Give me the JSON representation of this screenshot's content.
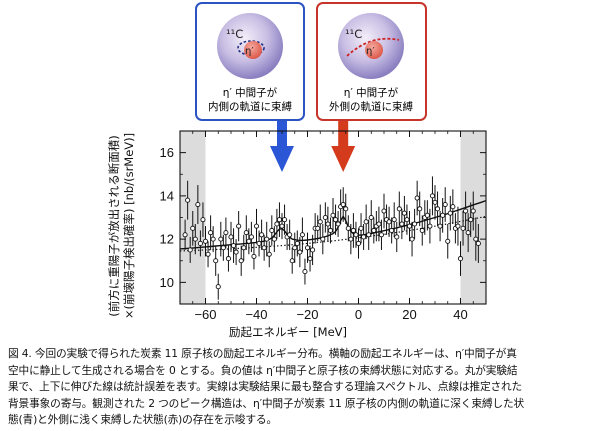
{
  "boxes": {
    "inner": {
      "nucleus_label": "¹¹C",
      "meson_label": "η′",
      "line1": "η′ 中間子が",
      "line2": "内側の軌道に束縛",
      "color": "#2b53c2"
    },
    "outer": {
      "nucleus_label": "¹¹C",
      "meson_label": "η′",
      "line1": "η′ 中間子が",
      "line2": "外側の軌道に束縛",
      "color": "#c7352a"
    }
  },
  "chart_data": {
    "type": "scatter",
    "xlabel": "励起エネルギー [MeV]",
    "ylabel_line1": "(前方に重陽子が放出される断面積)",
    "ylabel_line2": "×(崩壊陽子検出確率) [nb/(srMeV)]",
    "xlim": [
      -70,
      50
    ],
    "ylim": [
      9,
      17
    ],
    "x_ticks": [
      -60,
      -40,
      -20,
      0,
      20,
      40
    ],
    "x_tick_labels": [
      "−60",
      "−40",
      "−20",
      "0",
      "20",
      "40"
    ],
    "y_ticks": [
      10,
      12,
      14,
      16
    ],
    "y_tick_labels": [
      "10",
      "12",
      "14",
      "16"
    ],
    "shaded_regions": [
      [
        -70,
        -60
      ],
      [
        40,
        50
      ]
    ],
    "arrows": [
      {
        "x": -30,
        "color": "#2b56d6"
      },
      {
        "x": -6,
        "color": "#d43a1c"
      }
    ],
    "series": [
      {
        "kind": "data_points",
        "points": [
          [
            -68,
            12.2,
            0.7
          ],
          [
            -67,
            13.8,
            0.9
          ],
          [
            -66,
            11.5,
            0.6
          ],
          [
            -65,
            12.5,
            0.8
          ],
          [
            -64,
            12.0,
            0.7
          ],
          [
            -63,
            13.6,
            0.9
          ],
          [
            -62,
            11.8,
            0.6
          ],
          [
            -61,
            12.9,
            0.8
          ],
          [
            -60,
            11.9,
            0.7
          ],
          [
            -59,
            11.3,
            0.6
          ],
          [
            -58,
            12.3,
            0.8
          ],
          [
            -57,
            12.0,
            0.6
          ],
          [
            -56,
            11.0,
            0.7
          ],
          [
            -55,
            9.8,
            0.6
          ],
          [
            -54,
            12.0,
            0.8
          ],
          [
            -53,
            11.6,
            0.6
          ],
          [
            -52,
            12.3,
            0.7
          ],
          [
            -51,
            11.1,
            0.6
          ],
          [
            -50,
            12.1,
            0.7
          ],
          [
            -49,
            11.7,
            0.8
          ],
          [
            -48,
            11.4,
            0.6
          ],
          [
            -47,
            12.6,
            0.7
          ],
          [
            -46,
            11.0,
            0.7
          ],
          [
            -45,
            11.6,
            0.6
          ],
          [
            -44,
            12.3,
            0.8
          ],
          [
            -43,
            11.9,
            0.6
          ],
          [
            -42,
            12.1,
            0.7
          ],
          [
            -41,
            11.2,
            0.6
          ],
          [
            -40,
            12.6,
            0.8
          ],
          [
            -39,
            11.8,
            0.6
          ],
          [
            -38,
            12.2,
            0.7
          ],
          [
            -37,
            11.6,
            0.6
          ],
          [
            -36,
            12.0,
            0.8
          ],
          [
            -35,
            11.3,
            0.6
          ],
          [
            -34,
            12.4,
            0.7
          ],
          [
            -33,
            12.0,
            0.6
          ],
          [
            -32,
            12.7,
            0.7
          ],
          [
            -31,
            12.9,
            0.8
          ],
          [
            -30,
            12.6,
            0.6
          ],
          [
            -29,
            12.9,
            0.7
          ],
          [
            -28,
            12.1,
            0.6
          ],
          [
            -27,
            12.2,
            0.7
          ],
          [
            -26,
            11.0,
            0.6
          ],
          [
            -25,
            11.6,
            0.7
          ],
          [
            -24,
            11.8,
            0.6
          ],
          [
            -23,
            11.4,
            0.7
          ],
          [
            -22,
            12.2,
            0.8
          ],
          [
            -21,
            10.5,
            0.6
          ],
          [
            -20,
            11.6,
            0.7
          ],
          [
            -19,
            11.1,
            0.6
          ],
          [
            -18,
            11.5,
            0.7
          ],
          [
            -17,
            12.5,
            0.7
          ],
          [
            -16,
            12.5,
            0.6
          ],
          [
            -15,
            12.8,
            0.8
          ],
          [
            -14,
            12.0,
            0.7
          ],
          [
            -13,
            13.0,
            0.7
          ],
          [
            -12,
            12.7,
            0.8
          ],
          [
            -11,
            12.4,
            0.6
          ],
          [
            -10,
            13.1,
            0.8
          ],
          [
            -9,
            12.9,
            0.7
          ],
          [
            -8,
            12.7,
            0.6
          ],
          [
            -7,
            13.5,
            0.8
          ],
          [
            -6,
            13.6,
            0.8
          ],
          [
            -5,
            13.4,
            0.7
          ],
          [
            -4,
            12.5,
            0.6
          ],
          [
            -3,
            12.0,
            0.7
          ],
          [
            -2,
            12.4,
            0.8
          ],
          [
            -1,
            12.2,
            0.6
          ],
          [
            0,
            11.8,
            0.7
          ],
          [
            1,
            12.5,
            0.7
          ],
          [
            2,
            12.1,
            0.6
          ],
          [
            3,
            12.8,
            0.8
          ],
          [
            4,
            12.2,
            0.7
          ],
          [
            5,
            13.0,
            0.8
          ],
          [
            6,
            12.4,
            0.6
          ],
          [
            7,
            12.6,
            0.7
          ],
          [
            8,
            12.7,
            0.8
          ],
          [
            9,
            12.2,
            0.7
          ],
          [
            10,
            13.3,
            0.8
          ],
          [
            11,
            12.9,
            0.7
          ],
          [
            12,
            12.8,
            0.7
          ],
          [
            13,
            12.4,
            0.6
          ],
          [
            14,
            12.9,
            0.8
          ],
          [
            15,
            12.1,
            0.7
          ],
          [
            16,
            13.4,
            0.8
          ],
          [
            17,
            12.7,
            0.7
          ],
          [
            18,
            13.2,
            0.8
          ],
          [
            19,
            12.9,
            0.7
          ],
          [
            20,
            12.6,
            0.7
          ],
          [
            21,
            12.0,
            0.8
          ],
          [
            22,
            12.7,
            0.7
          ],
          [
            23,
            13.9,
            0.8
          ],
          [
            24,
            13.4,
            0.8
          ],
          [
            25,
            12.4,
            0.7
          ],
          [
            26,
            13.0,
            0.8
          ],
          [
            27,
            13.1,
            0.7
          ],
          [
            28,
            12.6,
            0.8
          ],
          [
            29,
            14.0,
            0.9
          ],
          [
            30,
            13.7,
            0.8
          ],
          [
            31,
            13.4,
            0.8
          ],
          [
            32,
            12.6,
            0.7
          ],
          [
            33,
            13.1,
            0.8
          ],
          [
            34,
            13.6,
            0.8
          ],
          [
            35,
            11.9,
            0.8
          ],
          [
            36,
            13.2,
            0.8
          ],
          [
            37,
            13.5,
            0.8
          ],
          [
            38,
            12.5,
            0.7
          ],
          [
            39,
            12.6,
            0.9
          ],
          [
            40,
            11.1,
            0.8
          ],
          [
            41,
            12.5,
            0.8
          ],
          [
            42,
            13.3,
            0.9
          ],
          [
            43,
            12.3,
            0.9
          ],
          [
            44,
            12.9,
            0.8
          ],
          [
            45,
            13.3,
            0.9
          ],
          [
            46,
            12.0,
            1.0
          ],
          [
            47,
            11.8,
            0.9
          ]
        ]
      },
      {
        "kind": "theory_fit",
        "style": "solid",
        "x": [
          -70,
          -68,
          -66,
          -64,
          -62,
          -60,
          -58,
          -56,
          -54,
          -52,
          -50,
          -48,
          -46,
          -44,
          -42,
          -40,
          -38,
          -36,
          -34,
          -33,
          -32,
          -31,
          -30,
          -29,
          -28,
          -27,
          -26,
          -24,
          -22,
          -20,
          -18,
          -16,
          -14,
          -12,
          -10,
          -9,
          -8,
          -7,
          -6,
          -5,
          -4,
          -3,
          -2,
          -1,
          0,
          2,
          4,
          6,
          8,
          10,
          12,
          14,
          16,
          18,
          20,
          22,
          24,
          26,
          28,
          30,
          32,
          34,
          36,
          38,
          40,
          42,
          44,
          46,
          48,
          50
        ],
        "y": [
          11.55,
          11.56,
          11.58,
          11.6,
          11.62,
          11.64,
          11.66,
          11.68,
          11.7,
          11.72,
          11.74,
          11.76,
          11.78,
          11.8,
          11.82,
          11.85,
          11.88,
          11.93,
          12.05,
          12.18,
          12.34,
          12.46,
          12.48,
          12.38,
          12.22,
          12.1,
          12.0,
          11.95,
          11.94,
          11.96,
          11.99,
          12.03,
          12.08,
          12.15,
          12.25,
          12.35,
          12.55,
          12.85,
          13.05,
          12.85,
          12.55,
          12.35,
          12.25,
          12.2,
          12.18,
          12.2,
          12.24,
          12.29,
          12.34,
          12.39,
          12.44,
          12.49,
          12.55,
          12.61,
          12.67,
          12.73,
          12.79,
          12.86,
          12.93,
          13.0,
          13.07,
          13.14,
          13.22,
          13.3,
          13.38,
          13.46,
          13.54,
          13.62,
          13.7,
          13.78
        ]
      },
      {
        "kind": "background",
        "style": "dotted",
        "x": [
          -70,
          -60,
          -50,
          -40,
          -30,
          -20,
          -10,
          0,
          10,
          20,
          30,
          40,
          50
        ],
        "y": [
          11.45,
          11.5,
          11.55,
          11.62,
          11.7,
          11.8,
          11.92,
          12.06,
          12.22,
          12.4,
          12.6,
          12.82,
          13.05
        ]
      }
    ]
  },
  "caption": {
    "lines": [
      "図 4.  今回の実験で得られた炭素 11 原子核の励起エネルギー分布。横軸の励起エネルギーは、η′中間子が真",
      "空中に静止して生成される場合を 0 とする。負の値は η′中間子と原子核の束縛状態に対応する。丸が実験結",
      "果で、上下に伸びた線は統計誤差を表す。実線は実験結果に最も整合する理論スペクトル、点線は推定された",
      "背景事象の寄与。観測された 2 つのピーク構造は、η′中間子が炭素 11 原子核の内側の軌道に深く束縛した状",
      "態(青)と外側に浅く束縛した状態(赤)の存在を示唆する。"
    ]
  }
}
